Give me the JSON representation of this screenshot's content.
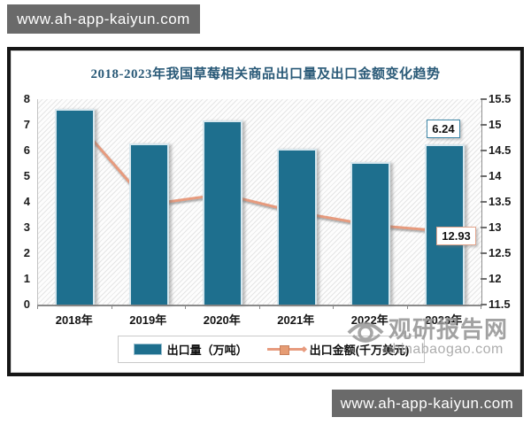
{
  "header_badge": {
    "text": "www.ah-app-kaiyun.com"
  },
  "footer_badge": {
    "text": "www.ah-app-kaiyun.com"
  },
  "watermark": {
    "site_name": "观研报告网",
    "site_url": "chinabaogao.com"
  },
  "colors": {
    "bar_fill": "#1e6f8e",
    "bar_border": "#d7e7ee",
    "line": "#e79b7e",
    "marker_fill": "#e69c74",
    "marker_border": "#c8805c",
    "title_text": "#2a5a78",
    "badge_bg": "#6a6a6a",
    "frame_border": "#161616"
  },
  "chart_data": {
    "type": "bar",
    "combo": "bar+line",
    "title": "2018-2023年我国草莓相关商品出口量及出口金额变化趋势",
    "categories": [
      "2018年",
      "2019年",
      "2020年",
      "2021年",
      "2022年",
      "2023年"
    ],
    "series": [
      {
        "name": "出口量（万吨）",
        "type": "bar",
        "axis": "left",
        "color": "#1e6f8e",
        "values": [
          7.61,
          6.28,
          7.17,
          6.08,
          5.55,
          6.24
        ]
      },
      {
        "name": "出口金额(千万美元)",
        "type": "line",
        "axis": "right",
        "color": "#e79b7e",
        "values": [
          15.1,
          13.45,
          13.65,
          13.3,
          13.05,
          12.93
        ]
      }
    ],
    "left_axis": {
      "min": 0,
      "max": 8,
      "ticks": [
        8,
        7,
        6,
        5,
        4,
        3,
        2,
        1,
        0
      ]
    },
    "right_axis": {
      "min": 11.5,
      "max": 15.5,
      "ticks": [
        "15.5",
        "15",
        "14.5",
        "14",
        "13.5",
        "13",
        "12.5",
        "12",
        "11.5"
      ]
    },
    "data_labels": [
      {
        "series": "bar",
        "index": 5,
        "text": "6.24"
      },
      {
        "series": "line",
        "index": 5,
        "text": "12.93"
      }
    ],
    "legend_position": "bottom",
    "grid": false,
    "plot_background": "diagonal-hatch"
  }
}
